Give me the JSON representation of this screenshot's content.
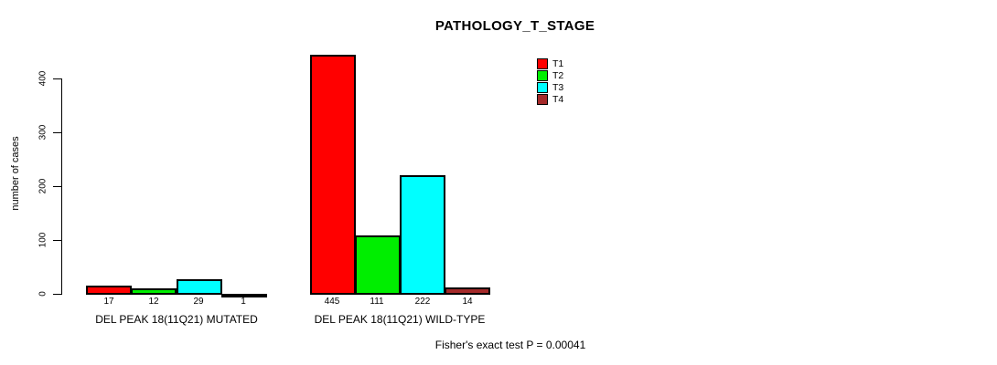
{
  "chart_data": {
    "type": "bar",
    "title": "PATHOLOGY_T_STAGE",
    "ylabel": "number of cases",
    "xlabel": "",
    "ylim": [
      0,
      400
    ],
    "yticks": [
      0,
      100,
      200,
      300,
      400
    ],
    "grid": false,
    "legend_position": "top-right-inside",
    "categories": [
      "DEL PEAK 18(11Q21) MUTATED",
      "DEL PEAK 18(11Q21) WILD-TYPE"
    ],
    "series": [
      {
        "name": "T1",
        "color": "#ff0000",
        "values": [
          17,
          445
        ]
      },
      {
        "name": "T2",
        "color": "#00ee00",
        "values": [
          12,
          111
        ]
      },
      {
        "name": "T3",
        "color": "#00ffff",
        "values": [
          29,
          222
        ]
      },
      {
        "name": "T4",
        "color": "#a52a2a",
        "values": [
          1,
          14
        ]
      }
    ],
    "bar_value_labels": [
      [
        17,
        12,
        29,
        1
      ],
      [
        445,
        111,
        222,
        14
      ]
    ],
    "annotation": "Fisher's exact test P = 0.00041"
  }
}
